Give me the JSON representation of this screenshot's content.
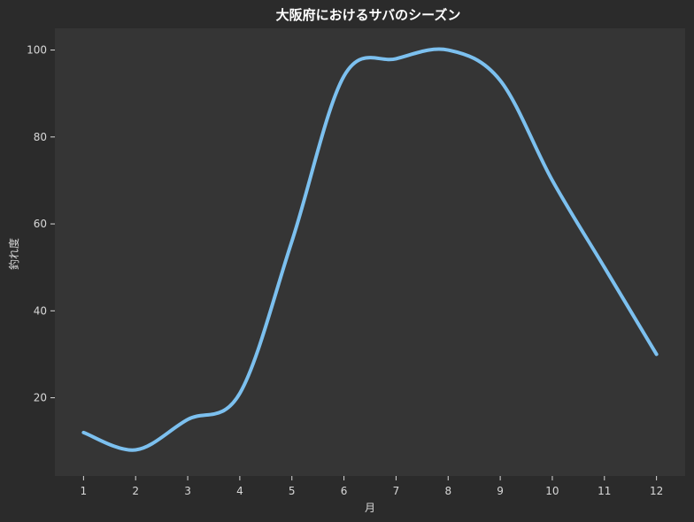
{
  "chart_data": {
    "type": "line",
    "title": "大阪府におけるサバのシーズン",
    "xlabel": "月",
    "ylabel": "釣れ度",
    "x": [
      1,
      2,
      3,
      4,
      5,
      6,
      7,
      8,
      9,
      10,
      11,
      12
    ],
    "x_ticks": [
      "1",
      "2",
      "3",
      "4",
      "5",
      "6",
      "7",
      "8",
      "9",
      "10",
      "11",
      "12"
    ],
    "y_ticks": [
      "20",
      "40",
      "60",
      "80",
      "100"
    ],
    "xlim": [
      0.45,
      12.55
    ],
    "ylim": [
      2,
      105
    ],
    "series": [
      {
        "values": [
          12,
          8,
          15,
          21,
          56,
          94,
          98,
          100,
          93,
          70,
          50,
          30
        ],
        "color": "#7cc0ef"
      }
    ],
    "grid": false,
    "background": "#353535",
    "figure_background": "#2b2b2b"
  }
}
